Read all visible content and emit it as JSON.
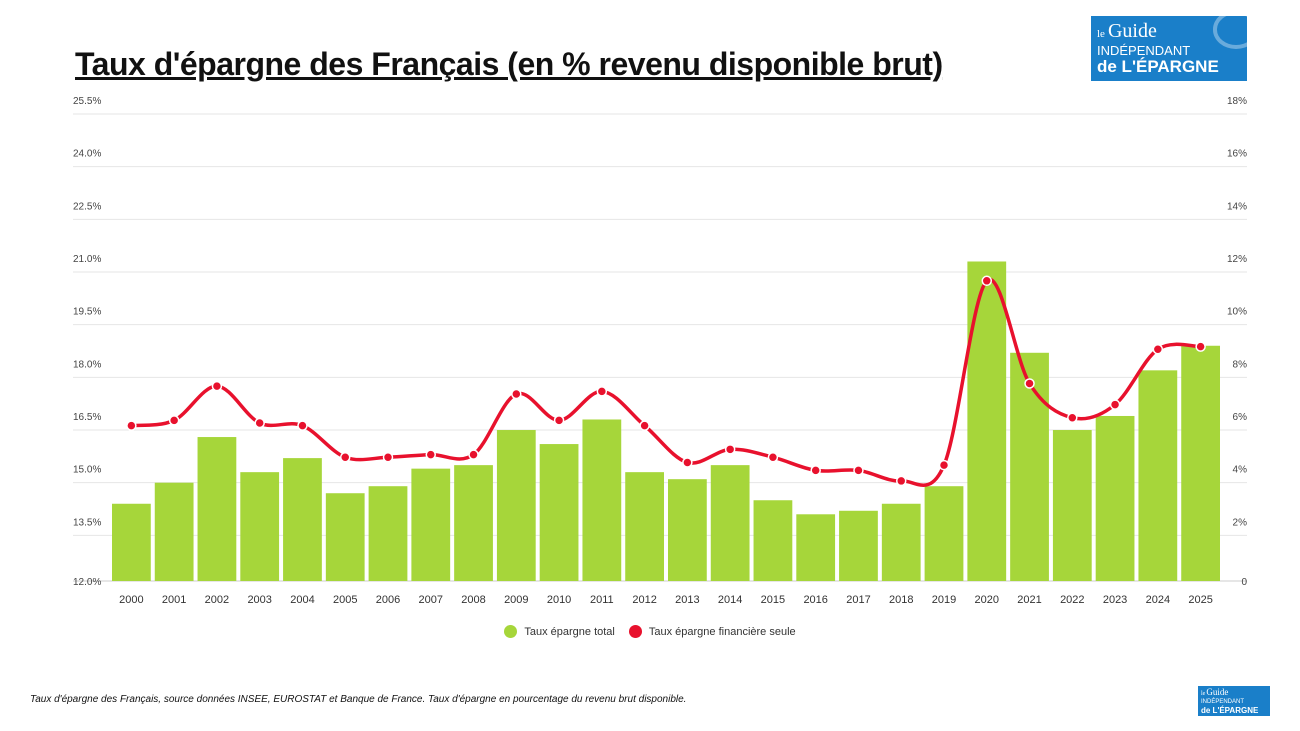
{
  "title": "Taux d'épargne des Français (en % revenu disponible brut)",
  "logo": {
    "line1": "le",
    "line2": "Guide",
    "line3": "INDÉPENDANT",
    "line4": "de L'ÉPARGNE"
  },
  "footer": "Taux d'épargne des Français, source données INSEE, EUROSTAT et Banque de France. Taux d'épargne en pourcentage du revenu brut disponible.",
  "chart_data": {
    "type": "bar",
    "categories": [
      "2000",
      "2001",
      "2002",
      "2003",
      "2004",
      "2005",
      "2006",
      "2007",
      "2008",
      "2009",
      "2010",
      "2011",
      "2012",
      "2013",
      "2014",
      "2015",
      "2016",
      "2017",
      "2018",
      "2019",
      "2020",
      "2021",
      "2022",
      "2023",
      "2024",
      "2025"
    ],
    "series": [
      {
        "name": "Taux épargne total",
        "type": "bar",
        "axis": "left",
        "color": "#a6d63a",
        "values": [
          14.2,
          14.8,
          16.1,
          15.1,
          15.5,
          14.5,
          14.7,
          15.2,
          15.3,
          16.3,
          15.9,
          16.6,
          15.1,
          14.9,
          15.3,
          14.3,
          13.9,
          14.0,
          14.2,
          14.7,
          21.1,
          18.5,
          16.3,
          16.7,
          18.0,
          18.7
        ]
      },
      {
        "name": "Taux épargne financière seule",
        "type": "line",
        "axis": "right",
        "color": "#e8112d",
        "values": [
          5.9,
          6.1,
          7.4,
          6.0,
          5.9,
          4.7,
          4.7,
          4.8,
          4.8,
          7.1,
          6.1,
          7.2,
          5.9,
          4.5,
          5.0,
          4.7,
          4.2,
          4.2,
          3.8,
          4.4,
          11.4,
          7.5,
          6.2,
          6.7,
          8.8,
          8.9
        ]
      }
    ],
    "left_axis": {
      "range": [
        12.0,
        25.5
      ],
      "ticks": [
        "12.0%",
        "13.5%",
        "15.0%",
        "16.5%",
        "18.0%",
        "19.5%",
        "21.0%",
        "22.5%",
        "24.0%",
        "25.5%"
      ]
    },
    "right_axis": {
      "range": [
        0,
        18
      ],
      "ticks": [
        "0",
        "2%",
        "4%",
        "6%",
        "8%",
        "10%",
        "12%",
        "14%",
        "16%",
        "18%"
      ]
    },
    "grid": true,
    "legend_position": "bottom"
  }
}
